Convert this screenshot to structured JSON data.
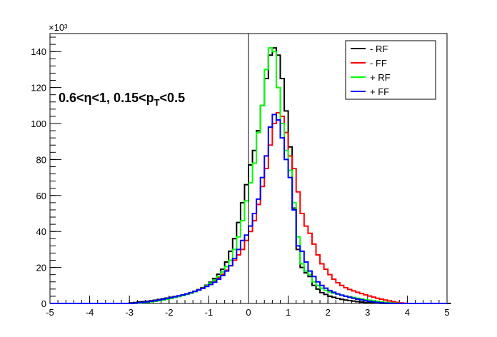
{
  "chart_data": {
    "type": "line",
    "title": "",
    "xlabel": "",
    "ylabel": "",
    "xlim": [
      -5,
      5
    ],
    "ylim": [
      0,
      150
    ],
    "y_multiplier_label": "×10³",
    "x_ticks": [
      -5,
      -4,
      -3,
      -2,
      -1,
      0,
      1,
      2,
      3,
      4,
      5
    ],
    "x_tick_labels": [
      "-5",
      "-4",
      "-3",
      "-2",
      "-1",
      "0",
      "1",
      "2",
      "3",
      "4",
      "5"
    ],
    "y_ticks": [
      0,
      20,
      40,
      60,
      80,
      100,
      120,
      140
    ],
    "y_tick_labels": [
      "0",
      "20",
      "40",
      "60",
      "80",
      "100",
      "120",
      "140"
    ],
    "bin_edges_range": [
      -5,
      5
    ],
    "bin_width": 0.1,
    "grid": false,
    "legend_position": "top-right",
    "annotation": {
      "prefix": "0.6<η<1, 0.15<p",
      "subscript": "T",
      "suffix": "<0.5"
    },
    "series": [
      {
        "name": "- RF",
        "color": "#000000",
        "values": [
          0,
          0,
          0,
          0,
          0,
          0,
          0,
          0,
          0,
          0,
          0,
          0,
          0,
          0,
          0,
          0,
          0,
          0,
          0,
          0,
          0.3,
          0.5,
          0.8,
          1.0,
          1.2,
          1.5,
          1.8,
          2.2,
          2.6,
          3.0,
          3.4,
          3.8,
          4.2,
          4.7,
          5.3,
          6.0,
          6.8,
          7.7,
          8.8,
          10.1,
          11.8,
          13.8,
          16.2,
          19,
          23,
          29,
          36,
          45,
          56,
          66,
          77,
          85,
          96,
          110,
          125,
          138,
          142,
          138,
          125,
          107,
          87,
          53,
          30,
          20,
          17,
          15,
          10,
          8,
          6,
          5,
          4,
          3.4,
          2.8,
          2.3,
          1.9,
          1.6,
          1.3,
          1.0,
          0.8,
          0.6,
          0.4,
          0.3,
          0.2,
          0.1,
          0,
          0,
          0,
          0,
          0,
          0,
          0,
          0,
          0,
          0,
          0,
          0,
          0,
          0,
          0,
          0,
          0
        ]
      },
      {
        "name": "- FF",
        "color": "#ff0000",
        "values": [
          0,
          0,
          0,
          0,
          0,
          0,
          0,
          0,
          0,
          0,
          0,
          0,
          0,
          0,
          0,
          0,
          0,
          0,
          0,
          0,
          0,
          0.1,
          0.3,
          0.5,
          0.8,
          1.0,
          1.3,
          1.7,
          2.1,
          2.5,
          3.0,
          3.5,
          4.0,
          4.6,
          5.2,
          5.9,
          6.7,
          7.6,
          8.6,
          9.8,
          11.1,
          12.6,
          14.3,
          16.2,
          18.5,
          21,
          24,
          27,
          30,
          35,
          40,
          46,
          55,
          65,
          75,
          88,
          100,
          106,
          104,
          95,
          82,
          75,
          62,
          50,
          43,
          39,
          33,
          27,
          22,
          19,
          16,
          13.5,
          11.5,
          10,
          8.8,
          7.8,
          7,
          6.2,
          5.5,
          4.8,
          4.1,
          3.5,
          2.9,
          2.4,
          1.9,
          1.4,
          1.0,
          0.6,
          0.3,
          0.1,
          0,
          0,
          0,
          0,
          0,
          0,
          0,
          0,
          0,
          0
        ]
      },
      {
        "name": "+ RF",
        "color": "#00ff00",
        "values": [
          0,
          0,
          0,
          0,
          0,
          0,
          0,
          0,
          0,
          0,
          0,
          0,
          0,
          0,
          0,
          0,
          0,
          0,
          0,
          0,
          0,
          0.1,
          0.2,
          0.4,
          0.6,
          0.9,
          1.2,
          1.5,
          1.9,
          2.3,
          2.8,
          3.3,
          3.8,
          4.4,
          5.0,
          5.7,
          6.5,
          7.4,
          8.5,
          9.8,
          11.3,
          13,
          15,
          17.5,
          20.5,
          24,
          30,
          37,
          46,
          57,
          67,
          78,
          95,
          110,
          130,
          142,
          140,
          120,
          100,
          85,
          74,
          56,
          37,
          22,
          18,
          16,
          12,
          10,
          8.5,
          7.3,
          6.4,
          5.7,
          5.1,
          4.6,
          4.1,
          3.7,
          3.3,
          2.9,
          2.5,
          2.1,
          1.8,
          1.5,
          1.2,
          0.9,
          0.6,
          0.4,
          0.2,
          0.1,
          0,
          0,
          0,
          0,
          0,
          0,
          0,
          0,
          0,
          0,
          0,
          0
        ]
      },
      {
        "name": "+ FF",
        "color": "#0000ff",
        "values": [
          0,
          0,
          0,
          0,
          0,
          0,
          0,
          0,
          0,
          0,
          0,
          0,
          0,
          0,
          0,
          0,
          0,
          0,
          0,
          0,
          0,
          0.2,
          0.4,
          0.6,
          0.9,
          1.2,
          1.5,
          1.9,
          2.3,
          2.8,
          3.2,
          3.7,
          4.2,
          4.7,
          5.3,
          6.0,
          6.7,
          7.5,
          8.4,
          9.4,
          10.5,
          11.8,
          13.5,
          15.5,
          18,
          21,
          25,
          30,
          35,
          38,
          43,
          50,
          58,
          70,
          82,
          98,
          105,
          102,
          92,
          80,
          70,
          52,
          32,
          29,
          23,
          18,
          15,
          12,
          10,
          8.5,
          7.2,
          6.2,
          5.3,
          4.6,
          4.0,
          3.4,
          2.9,
          2.4,
          2.0,
          1.6,
          1.2,
          0.9,
          0.6,
          0.4,
          0.2,
          0.1,
          0,
          0,
          0,
          0,
          0,
          0,
          0,
          0,
          0,
          0,
          0,
          0,
          0,
          0
        ]
      }
    ]
  }
}
